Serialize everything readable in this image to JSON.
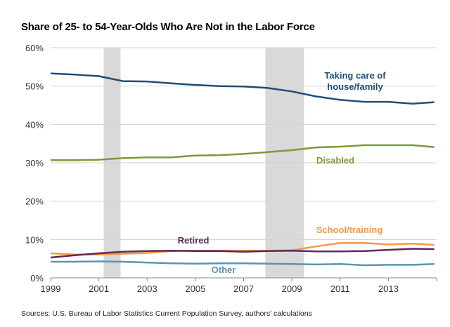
{
  "chart_data": {
    "type": "line",
    "title": "Share of 25- to 54-Year-Olds Who Are Not in the Labor Force",
    "xlabel": "",
    "ylabel": "",
    "xlim": [
      1999,
      2015
    ],
    "ylim": [
      0,
      60
    ],
    "x_ticks": [
      "1999",
      "2001",
      "2003",
      "2005",
      "2007",
      "2009",
      "2011",
      "2013"
    ],
    "y_ticks": [
      "0%",
      "10%",
      "20%",
      "30%",
      "40%",
      "50%",
      "60%"
    ],
    "grid": "horizontal",
    "recessions": [
      [
        2001.2,
        2001.9
      ],
      [
        2007.9,
        2009.5
      ]
    ],
    "x": [
      1999,
      2000,
      2001,
      2002,
      2003,
      2004,
      2005,
      2006,
      2007,
      2008,
      2009,
      2010,
      2011,
      2012,
      2013,
      2014,
      2014.9
    ],
    "series": [
      {
        "name": "Taking care of house/family",
        "label_lines": [
          "Taking care of",
          "house/family"
        ],
        "color": "#1f4e79",
        "values": [
          53.3,
          53.0,
          52.6,
          51.3,
          51.2,
          50.7,
          50.3,
          50.0,
          49.9,
          49.5,
          48.6,
          47.3,
          46.4,
          45.9,
          45.9,
          45.4,
          45.8
        ]
      },
      {
        "name": "Disabled",
        "label_lines": [
          "Disabled"
        ],
        "color": "#7a9a3a",
        "values": [
          30.7,
          30.7,
          30.8,
          31.2,
          31.4,
          31.4,
          31.9,
          32.0,
          32.3,
          32.8,
          33.3,
          34.0,
          34.2,
          34.6,
          34.6,
          34.6,
          34.1
        ]
      },
      {
        "name": "School/training",
        "label_lines": [
          "School/training"
        ],
        "color": "#f79646",
        "values": [
          6.4,
          6.1,
          6.1,
          6.3,
          6.5,
          7.0,
          7.1,
          7.1,
          7.1,
          7.1,
          7.2,
          8.2,
          9.1,
          9.1,
          8.7,
          8.9,
          8.6
        ]
      },
      {
        "name": "Retired",
        "label_lines": [
          "Retired"
        ],
        "color": "#5c2a5e",
        "values": [
          5.3,
          5.9,
          6.4,
          6.8,
          7.0,
          7.1,
          7.0,
          7.0,
          6.8,
          7.0,
          7.1,
          6.9,
          6.9,
          7.0,
          7.3,
          7.6,
          7.5
        ]
      },
      {
        "name": "Other",
        "label_lines": [
          "Other"
        ],
        "color": "#5a94b4",
        "values": [
          4.2,
          4.2,
          4.3,
          4.2,
          4.0,
          3.8,
          3.7,
          3.8,
          3.8,
          3.7,
          3.6,
          3.5,
          3.6,
          3.3,
          3.4,
          3.4,
          3.6
        ]
      }
    ],
    "source": "Sources: U.S. Bureau of Labor Statistics Current Population  Survey, authors' calculations"
  }
}
